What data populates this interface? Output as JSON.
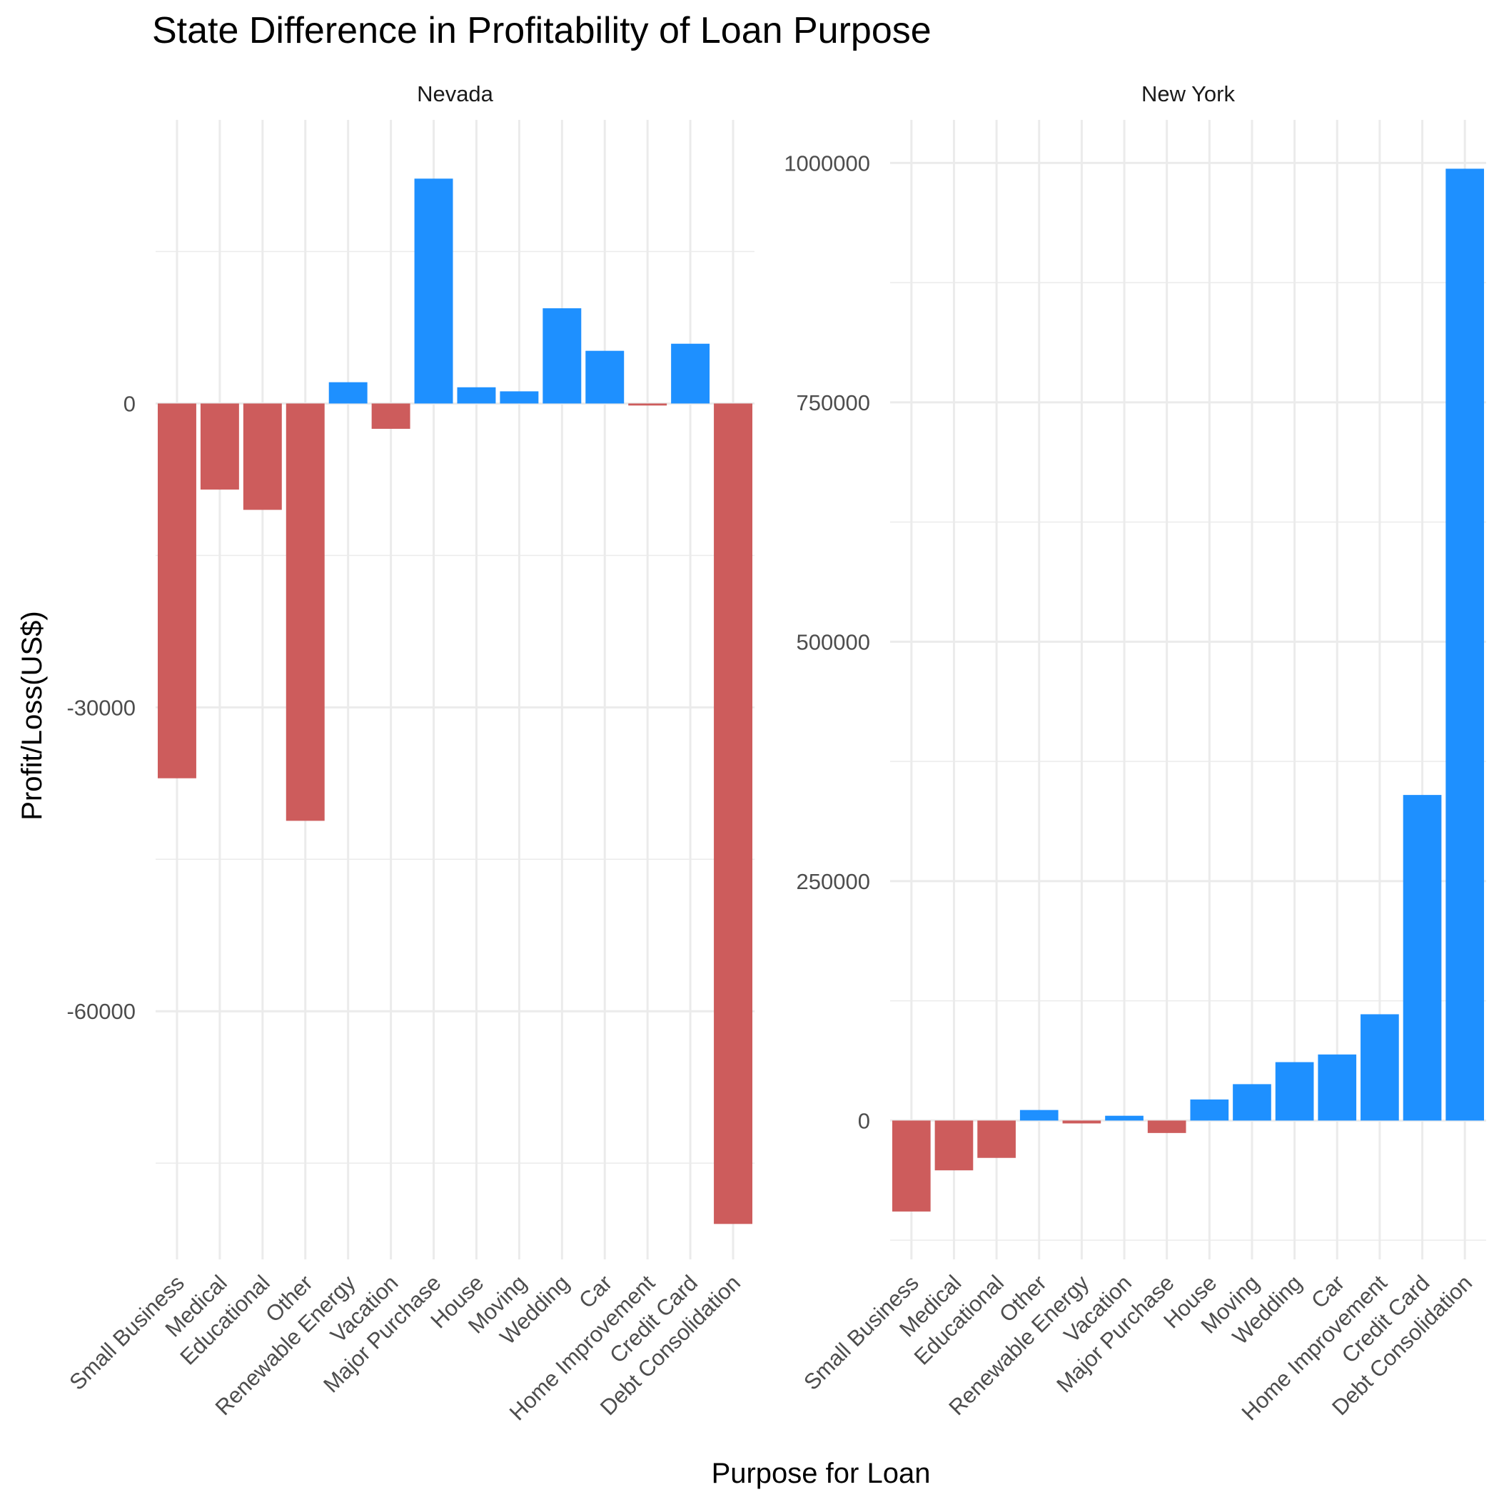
{
  "chart_data": {
    "type": "bar",
    "title": "State Difference in Profitability of Loan Purpose",
    "xlabel": "Purpose for Loan",
    "ylabel": "Profit/Loss(US$)",
    "colors": {
      "profit": "#1E90FF",
      "loss": "#CD5C5C",
      "grid": "#EBEBEB",
      "text": "#4D4D4D"
    },
    "grid": true,
    "legend": "none",
    "panels": [
      {
        "name": "Nevada",
        "ylim": [
          -84500,
          28000
        ],
        "yticks": [
          0,
          -30000,
          -60000
        ],
        "ytick_labels": [
          "0",
          "-30000",
          "-60000"
        ],
        "categories": [
          "Small Business",
          "Medical",
          "Educational",
          "Other",
          "Renewable Energy",
          "Vacation",
          "Major Purchase",
          "House",
          "Moving",
          "Wedding",
          "Car",
          "Home Improvement",
          "Credit Card",
          "Debt Consolidation"
        ],
        "values": [
          -37000,
          -8500,
          -10500,
          -41200,
          2100,
          -2500,
          22200,
          1600,
          1200,
          9400,
          5200,
          -200,
          5900,
          -81000
        ]
      },
      {
        "name": "New York",
        "ylim": [
          -145000,
          1045000
        ],
        "yticks": [
          0,
          250000,
          500000,
          750000,
          1000000
        ],
        "ytick_labels": [
          "0",
          "250000",
          "500000",
          "750000",
          "1000000"
        ],
        "categories": [
          "Small Business",
          "Medical",
          "Educational",
          "Other",
          "Renewable Energy",
          "Vacation",
          "Major Purchase",
          "House",
          "Moving",
          "Wedding",
          "Car",
          "Home Improvement",
          "Credit Card",
          "Debt Consolidation"
        ],
        "values": [
          -95000,
          -52000,
          -39000,
          11000,
          -3000,
          5000,
          -13000,
          22000,
          38000,
          61000,
          69000,
          111000,
          340000,
          994000
        ]
      }
    ]
  }
}
